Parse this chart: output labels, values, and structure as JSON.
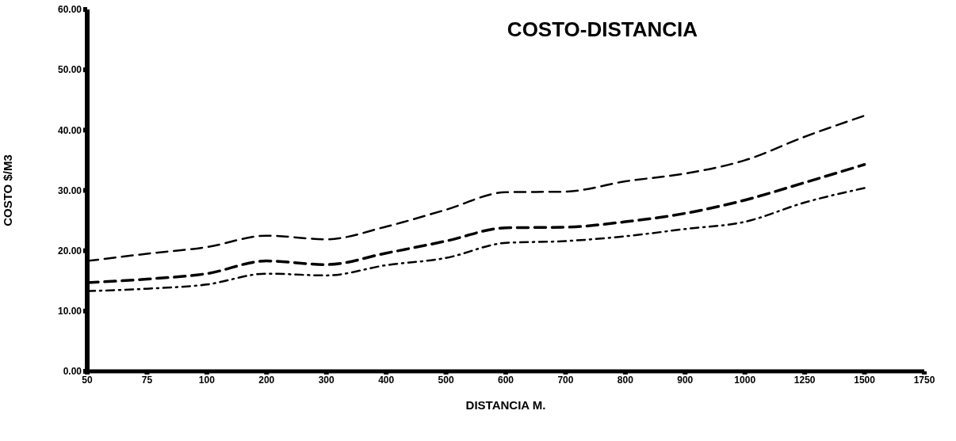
{
  "chart_data": {
    "type": "line",
    "title": "COSTO-DISTANCIA",
    "xlabel": "DISTANCIA  M.",
    "ylabel": "COSTO  $/M3",
    "categories": [
      "50",
      "75",
      "100",
      "200",
      "300",
      "400",
      "500",
      "600",
      "700",
      "800",
      "900",
      "1000",
      "1250",
      "1500",
      "1750"
    ],
    "series": [
      {
        "color": "#000000",
        "line_style": "dashed",
        "values": [
          18.3,
          19.5,
          20.6,
          22.5,
          21.9,
          24.0,
          26.8,
          29.7,
          29.8,
          31.5,
          32.8,
          35.0,
          38.9,
          42.4,
          null
        ]
      },
      {
        "color": "#000000",
        "line_style": "dashed",
        "values": [
          14.7,
          15.3,
          16.2,
          18.3,
          17.7,
          19.6,
          21.6,
          23.8,
          23.9,
          24.8,
          26.2,
          28.4,
          31.3,
          34.3,
          null
        ]
      },
      {
        "color": "#000000",
        "line_style": "dotted",
        "values": [
          13.3,
          13.7,
          14.4,
          16.2,
          15.9,
          17.6,
          18.8,
          21.3,
          21.6,
          22.4,
          23.6,
          24.8,
          28.0,
          30.4,
          null
        ]
      }
    ],
    "ylim": [
      0,
      60
    ],
    "yticks": [
      {
        "value": 0,
        "label": "0.00"
      },
      {
        "value": 10,
        "label": "10.00"
      },
      {
        "value": 20,
        "label": "20.00"
      },
      {
        "value": 30,
        "label": "30.00"
      },
      {
        "value": 40,
        "label": "40.00"
      },
      {
        "value": 50,
        "label": "50.00"
      },
      {
        "value": 60,
        "label": "60.00"
      }
    ],
    "grid": false,
    "legend": false,
    "marker": "none"
  }
}
